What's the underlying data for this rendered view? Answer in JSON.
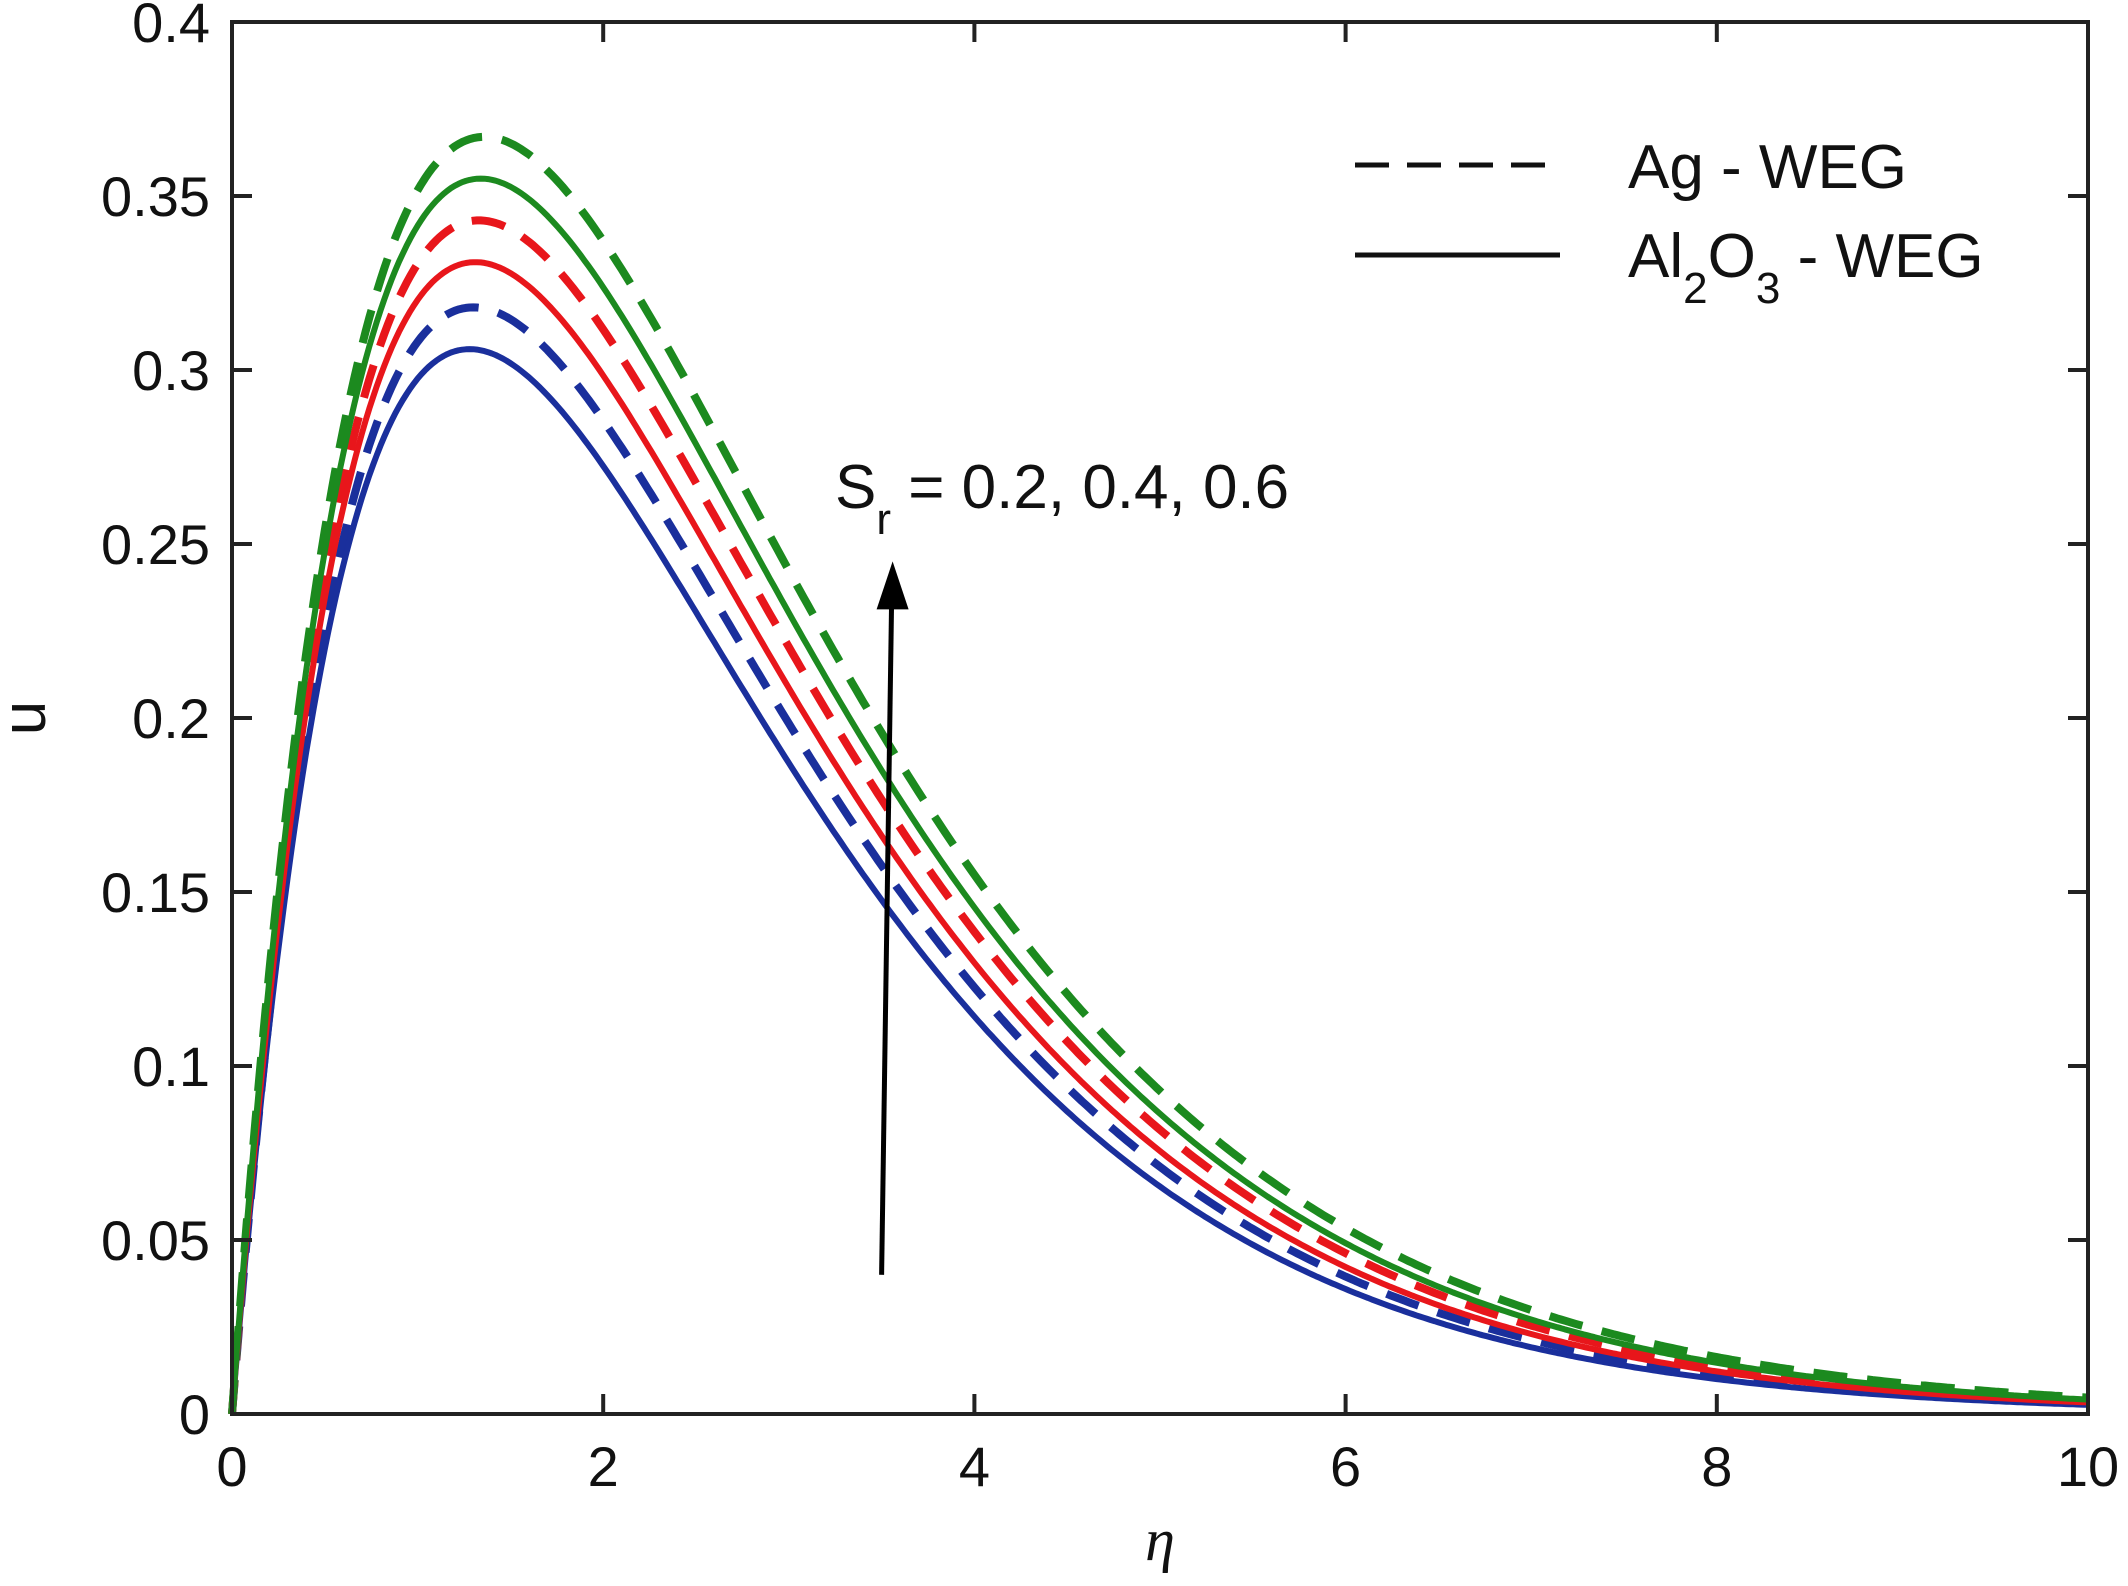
{
  "chart_data": {
    "type": "line",
    "title": "",
    "xlabel": "η",
    "ylabel": "u",
    "xlim": [
      0,
      10
    ],
    "ylim": [
      0,
      0.4
    ],
    "xticks": [
      0,
      2,
      4,
      6,
      8,
      10
    ],
    "yticks": [
      0,
      0.05,
      0.1,
      0.15,
      0.2,
      0.25,
      0.3,
      0.35,
      0.4
    ],
    "xtick_labels": [
      "0",
      "2",
      "4",
      "6",
      "8",
      "10"
    ],
    "ytick_labels": [
      "0",
      "0.05",
      "0.1",
      "0.15",
      "0.2",
      "0.25",
      "0.3",
      "0.35",
      "0.4"
    ],
    "grid": false,
    "legend_position": "top-right",
    "legend": [
      {
        "label": "Ag - WEG",
        "style": "dashed"
      },
      {
        "label_main": "Al",
        "sub1": "2",
        "mid": "O",
        "sub2": "3",
        "tail": " - WEG",
        "style": "solid"
      }
    ],
    "annotation": {
      "main": "S",
      "sub": "r",
      "rest": " = 0.2, 0.4, 0.6",
      "arrow_from": [
        3.5,
        0.04
      ],
      "arrow_to": [
        3.5,
        0.245
      ]
    },
    "colors": {
      "Sr_0.2": "#1a2f9c",
      "Sr_0.4": "#e8161b",
      "Sr_0.6": "#1c8a1f"
    },
    "curve_model": "u = A * eta * exp(-eta / k)",
    "series": [
      {
        "fluid": "Ag - WEG",
        "Sr": 0.2,
        "style": "dashed",
        "color": "#1a2f9c",
        "peak_x": 1.3,
        "peak_y": 0.318
      },
      {
        "fluid": "Ag - WEG",
        "Sr": 0.4,
        "style": "dashed",
        "color": "#e8161b",
        "peak_x": 1.33,
        "peak_y": 0.343
      },
      {
        "fluid": "Ag - WEG",
        "Sr": 0.6,
        "style": "dashed",
        "color": "#1c8a1f",
        "peak_x": 1.36,
        "peak_y": 0.367
      },
      {
        "fluid": "Al2O3 - WEG",
        "Sr": 0.2,
        "style": "solid",
        "color": "#1a2f9c",
        "peak_x": 1.28,
        "peak_y": 0.306
      },
      {
        "fluid": "Al2O3 - WEG",
        "Sr": 0.4,
        "style": "solid",
        "color": "#e8161b",
        "peak_x": 1.31,
        "peak_y": 0.331
      },
      {
        "fluid": "Al2O3 - WEG",
        "Sr": 0.6,
        "style": "solid",
        "color": "#1c8a1f",
        "peak_x": 1.34,
        "peak_y": 0.355
      }
    ]
  }
}
